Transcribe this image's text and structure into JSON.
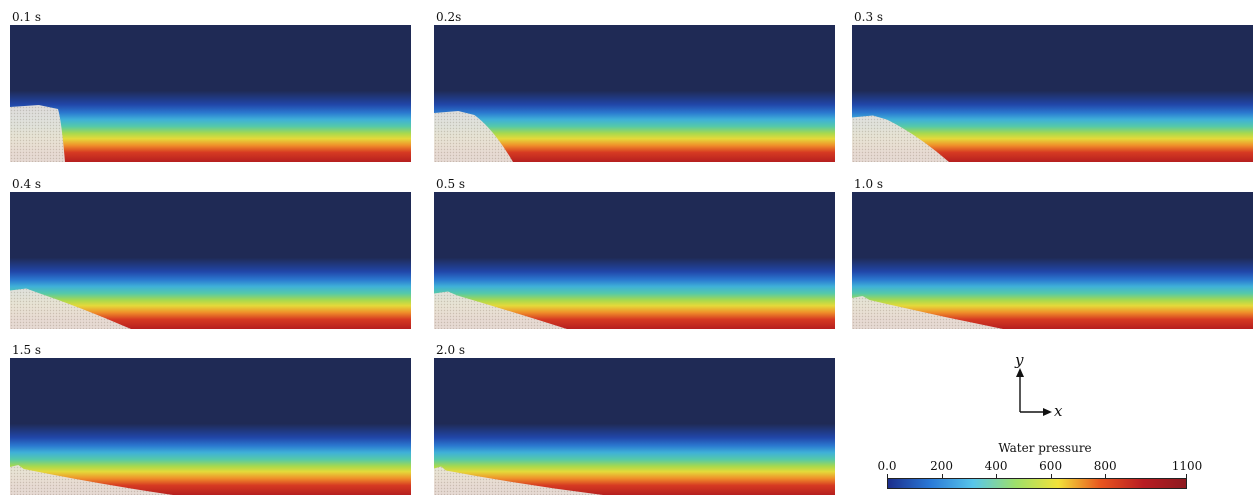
{
  "figure": {
    "panels": [
      {
        "time_label": "0.1 s",
        "collapse_fraction": 0.0
      },
      {
        "time_label": "0.2s",
        "collapse_fraction": 0.2
      },
      {
        "time_label": "0.3 s",
        "collapse_fraction": 0.35
      },
      {
        "time_label": "0.4 s",
        "collapse_fraction": 0.55
      },
      {
        "time_label": "0.5 s",
        "collapse_fraction": 0.65
      },
      {
        "time_label": "1.0 s",
        "collapse_fraction": 0.8
      },
      {
        "time_label": "1.5 s",
        "collapse_fraction": 0.9
      },
      {
        "time_label": "2.0 s",
        "collapse_fraction": 0.95
      }
    ],
    "axes": {
      "y_label": "y",
      "x_label": "x"
    },
    "colorbar": {
      "title": "Water pressure",
      "min": 0,
      "max": 1100,
      "tick_labels": [
        "0.0",
        "200",
        "400",
        "600",
        "800",
        "1100"
      ],
      "tick_values": [
        0,
        200,
        400,
        600,
        800,
        1100
      ],
      "colors": [
        "#1c2e8c",
        "#2a7ad8",
        "#58c6ea",
        "#9ee06a",
        "#f2e23a",
        "#e8551f",
        "#b81c22",
        "#8e1a1f"
      ]
    },
    "colors": {
      "air": "#1f2a55",
      "soil": "#e8e3dc"
    }
  }
}
